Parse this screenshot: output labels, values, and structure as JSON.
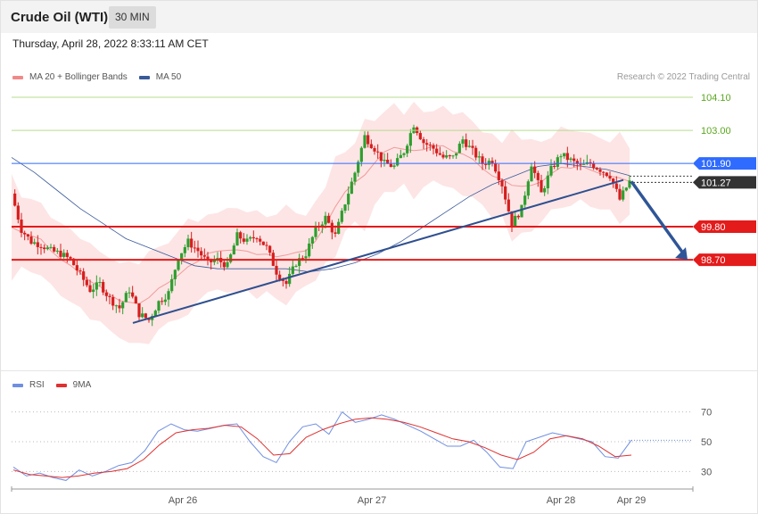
{
  "header": {
    "title": "Crude Oil (WTI)",
    "timeframe": "30 MIN",
    "datetime": "Thursday, April 28, 2022 8:33:11 AM CET"
  },
  "legend": {
    "ma20": {
      "label": "MA 20 + Bollinger Bands",
      "color": "#f08a8a"
    },
    "ma50": {
      "label": "MA 50",
      "color": "#3a5a9a"
    },
    "rsi": {
      "label": "RSI",
      "color": "#6f8fe0"
    },
    "rsi9": {
      "label": "9MA",
      "color": "#e03030"
    }
  },
  "copyright": "Research © 2022 Trading Central",
  "chart_data": {
    "type": "candlestick",
    "price_axis": {
      "range": [
        96.0,
        104.6
      ]
    },
    "x_tick_labels": [
      "Apr 26",
      "Apr 27",
      "Apr 28",
      "Apr 29"
    ],
    "levels": [
      {
        "label": "104.10",
        "value": 104.1,
        "kind": "target",
        "color": "#7cbc3c"
      },
      {
        "label": "103.00",
        "value": 103.0,
        "kind": "target",
        "color": "#7cbc3c"
      },
      {
        "label": "101.90",
        "value": 101.9,
        "kind": "pivot",
        "color": "#2f6bff"
      },
      {
        "label": "101.27",
        "value": 101.27,
        "kind": "last",
        "color": "#333333"
      },
      {
        "label": "99.80",
        "value": 99.8,
        "kind": "support",
        "color": "#e31b1b"
      },
      {
        "label": "98.70",
        "value": 98.7,
        "kind": "support",
        "color": "#e31b1b"
      }
    ],
    "trendline": {
      "from": 96.6,
      "to": 101.35
    },
    "forecast_arrow": {
      "from": 101.3,
      "to": 98.7
    },
    "price_path": [
      100.9,
      99.7,
      99.3,
      99.2,
      99.0,
      98.9,
      98.7,
      98.2,
      97.7,
      97.9,
      97.4,
      97.1,
      97.7,
      96.9,
      96.7,
      97.3,
      97.6,
      98.8,
      99.3,
      99.0,
      98.6,
      98.7,
      98.5,
      99.5,
      99.3,
      99.5,
      99.1,
      98.3,
      97.9,
      98.6,
      98.9,
      99.7,
      100.1,
      99.5,
      100.6,
      101.6,
      102.8,
      102.4,
      101.9,
      101.8,
      102.3,
      103.2,
      102.6,
      102.4,
      102.1,
      102.1,
      102.7,
      102.3,
      101.9,
      102.0,
      101.2,
      99.9,
      100.4,
      101.9,
      100.9,
      101.7,
      102.2,
      102.0,
      101.8,
      101.9,
      101.7,
      101.5,
      100.7,
      101.3
    ],
    "ma50_path": [
      102.1,
      101.6,
      101.0,
      100.4,
      99.9,
      99.4,
      99.1,
      98.8,
      98.5,
      98.4,
      98.4,
      98.4,
      98.4,
      98.3,
      98.4,
      98.6,
      98.9,
      99.3,
      99.8,
      100.3,
      100.8,
      101.2,
      101.5,
      101.8,
      101.9,
      101.8,
      101.7,
      101.5
    ],
    "rsi": {
      "range": [
        20,
        80
      ],
      "levels": [
        70,
        50,
        30
      ],
      "rsi_path": [
        33,
        27,
        29,
        26,
        24,
        31,
        27,
        30,
        34,
        36,
        44,
        57,
        62,
        58,
        57,
        59,
        61,
        62,
        50,
        40,
        36,
        50,
        60,
        62,
        55,
        70,
        63,
        65,
        68,
        65,
        61,
        57,
        52,
        47,
        47,
        51,
        43,
        33,
        32,
        50,
        53,
        56,
        54,
        52,
        50,
        40,
        39,
        51
      ],
      "ma9_path": [
        31,
        28,
        27,
        26,
        27,
        29,
        30,
        32,
        38,
        48,
        56,
        58,
        59,
        61,
        60,
        52,
        41,
        42,
        53,
        58,
        62,
        65,
        66,
        65,
        63,
        60,
        56,
        52,
        50,
        46,
        41,
        38,
        43,
        52,
        54,
        52,
        47,
        40,
        41
      ]
    }
  }
}
